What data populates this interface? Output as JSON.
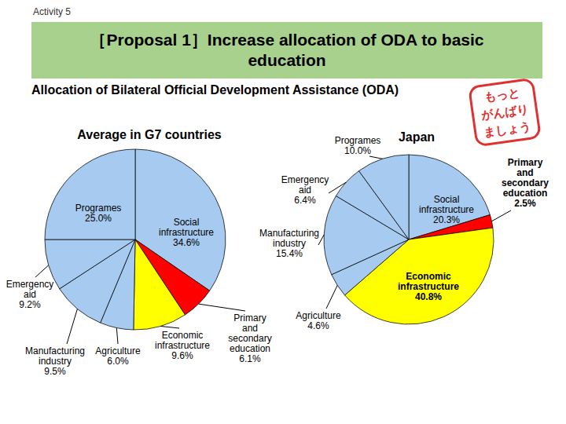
{
  "header": {
    "activity": "Activity 5",
    "title": "［Proposal 1］Increase allocation of ODA to basic education",
    "subtitle": "Allocation of Bilateral Official Development Assistance (ODA)",
    "stamp": [
      "もっと",
      "がんばり",
      "ましょう"
    ]
  },
  "chart_data": [
    {
      "type": "pie",
      "title": "Average in G7 countries",
      "categories": [
        "Social infrastructure",
        "Primary and secondary education",
        "Economic infrastructure",
        "Agriculture",
        "Manufacturing industry",
        "Emergency aid",
        "Programes"
      ],
      "values": [
        34.6,
        6.1,
        9.6,
        6.0,
        9.5,
        9.2,
        25.0
      ],
      "value_labels": [
        "34.6%",
        "6.1%",
        "9.6%",
        "6.0%",
        "9.5%",
        "9.2%",
        "25.0%"
      ],
      "colors": [
        "#a6caf0",
        "#ff0000",
        "#ffff00",
        "#a6caf0",
        "#a6caf0",
        "#a6caf0",
        "#a6caf0"
      ],
      "data_labels": true
    },
    {
      "type": "pie",
      "title": "Japan",
      "categories": [
        "Social infrastructure",
        "Primary and secondary education",
        "Economic infrastructure",
        "Agriculture",
        "Manufacturing industry",
        "Emergency aid",
        "Programes"
      ],
      "values": [
        20.3,
        2.5,
        40.8,
        4.6,
        15.4,
        6.4,
        10.0
      ],
      "value_labels": [
        "20.3%",
        "2.5%",
        "40.8%",
        "4.6%",
        "15.4%",
        "6.4%",
        "10.0%"
      ],
      "colors": [
        "#a6caf0",
        "#ff0000",
        "#ffff00",
        "#a6caf0",
        "#a6caf0",
        "#a6caf0",
        "#a6caf0"
      ],
      "data_labels": true
    }
  ]
}
